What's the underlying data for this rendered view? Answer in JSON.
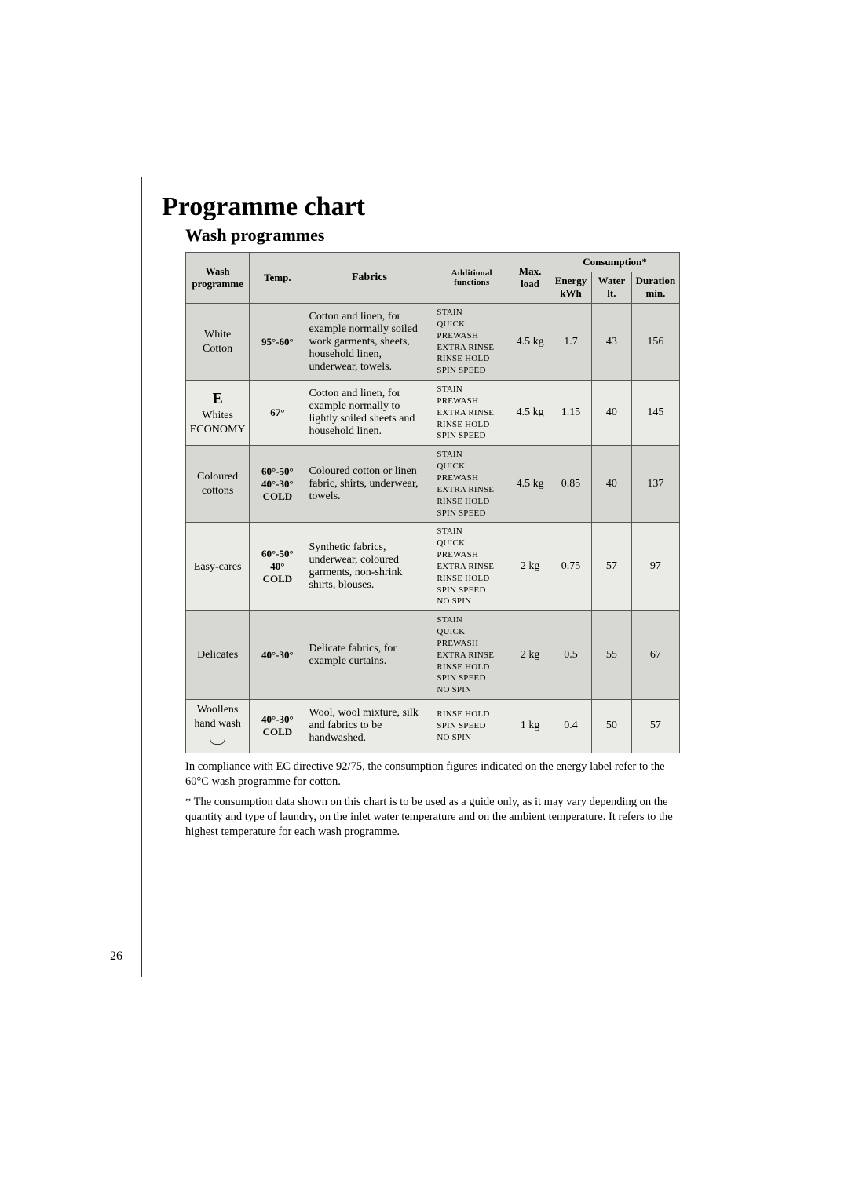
{
  "title": "Programme chart",
  "subtitle": "Wash programmes",
  "headers": {
    "programme": "Wash\nprogramme",
    "temp": "Temp.",
    "fabrics": "Fabrics",
    "functions": "Additional\nfunctions",
    "load": "Max.\nload",
    "consumption": "Consumption*",
    "energy": "Energy\nkWh",
    "water": "Water\nlt.",
    "duration": "Duration\nmin."
  },
  "rows": [
    {
      "programme": "White\nCotton",
      "programme_bold": false,
      "special": "",
      "temp": "95°-60°",
      "fabrics": "Cotton and linen, for example normally soiled work garments, sheets, household linen, underwear, towels.",
      "functions": "STAIN\nQUICK\nPREWASH\nEXTRA RINSE\nRINSE HOLD\nSPIN SPEED",
      "load": "4.5 kg",
      "energy": "1.7",
      "water": "43",
      "duration": "156"
    },
    {
      "programme": "Whites\nECONOMY",
      "programme_bold": false,
      "special": "E",
      "temp": "67°",
      "fabrics": "Cotton and linen, for example normally to lightly soiled sheets and household linen.",
      "functions": "STAIN\nPREWASH\nEXTRA RINSE\nRINSE HOLD\nSPIN SPEED",
      "load": "4.5 kg",
      "energy": "1.15",
      "water": "40",
      "duration": "145"
    },
    {
      "programme": "Coloured\ncottons",
      "programme_bold": false,
      "special": "",
      "temp": "60°-50°\n40°-30°\nCOLD",
      "fabrics": "Coloured cotton or linen fabric, shirts, underwear, towels.",
      "functions": "STAIN\nQUICK\nPREWASH\nEXTRA RINSE\nRINSE HOLD\nSPIN SPEED",
      "load": "4.5 kg",
      "energy": "0.85",
      "water": "40",
      "duration": "137"
    },
    {
      "programme": "Easy-cares",
      "programme_bold": false,
      "special": "",
      "temp": "60°-50°\n40°\nCOLD",
      "fabrics": "Synthetic fabrics, underwear, coloured garments, non-shrink shirts, blouses.",
      "functions": "STAIN\nQUICK\nPREWASH\nEXTRA RINSE\nRINSE HOLD\nSPIN SPEED\nNO SPIN",
      "load": "2 kg",
      "energy": "0.75",
      "water": "57",
      "duration": "97"
    },
    {
      "programme": "Delicates",
      "programme_bold": false,
      "special": "",
      "temp": "40°-30°",
      "fabrics": "Delicate fabrics, for example curtains.",
      "functions": "STAIN\nQUICK\nPREWASH\nEXTRA RINSE\nRINSE HOLD\nSPIN SPEED\nNO SPIN",
      "load": "2 kg",
      "energy": "0.5",
      "water": "55",
      "duration": "67"
    },
    {
      "programme": "Woollens\nhand wash",
      "programme_bold": false,
      "special": "icon",
      "temp": "40°-30°\nCOLD",
      "fabrics": "Wool, wool mixture, silk and fabrics to be handwashed.",
      "functions": "RINSE HOLD\nSPIN SPEED\nNO SPIN",
      "load": "1 kg",
      "energy": "0.4",
      "water": "50",
      "duration": "57"
    }
  ],
  "footnote1": "In compliance with EC directive 92/75, the consumption figures indicated on the energy label refer to the 60°C wash programme for cotton.",
  "footnote2": "* The consumption data shown on this chart is to be used as a guide only, as it may vary depending on the quantity and type of laundry, on the inlet water temperature and on the ambient temperature. It refers to the highest temperature for each wash programme.",
  "page_number": "26",
  "colors": {
    "odd_row_bg": "#d8d8d2",
    "even_row_bg": "#ebebe6",
    "header_bg": "#d8d8d2"
  }
}
